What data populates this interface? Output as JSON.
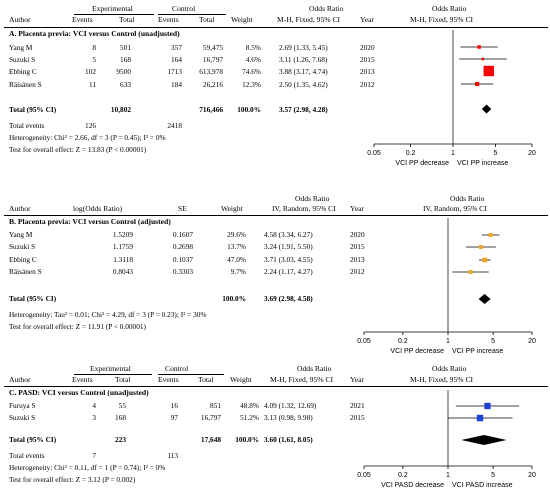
{
  "chart_data": [
    {
      "type": "forest",
      "section_title": "A. Placenta previa: VCI versus Control (unadjusted)",
      "group_headers": {
        "experimental": "Experimental",
        "control": "Control"
      },
      "columns": [
        "Author",
        "Events",
        "Total",
        "Events",
        "Total",
        "Weight",
        "M-H, Fixed, 95% CI",
        "Year"
      ],
      "effect_header": "Odds Ratio",
      "effect_subheader": "M-H, Fixed, 95% CI",
      "rows": [
        {
          "author": "Yang M",
          "exp_events": "8",
          "exp_total": "501",
          "ctl_events": "357",
          "ctl_total": "59,475",
          "weight": "8.5%",
          "ci_text": "2.69 (1.33, 5.45)",
          "year": "2020",
          "or": 2.69,
          "lo": 1.33,
          "hi": 5.45
        },
        {
          "author": "Suzuki S",
          "exp_events": "5",
          "exp_total": "168",
          "ctl_events": "164",
          "ctl_total": "16,797",
          "weight": "4.6%",
          "ci_text": "3.11 (1.26, 7.68)",
          "year": "2015",
          "or": 3.11,
          "lo": 1.26,
          "hi": 7.68
        },
        {
          "author": "Ebbing C",
          "exp_events": "102",
          "exp_total": "9500",
          "ctl_events": "1713",
          "ctl_total": "613,978",
          "weight": "74.6%",
          "ci_text": "3.88 (3.17, 4.74)",
          "year": "2013",
          "or": 3.88,
          "lo": 3.17,
          "hi": 4.74
        },
        {
          "author": "Räisänen S",
          "exp_events": "11",
          "exp_total": "633",
          "ctl_events": "184",
          "ctl_total": "26,216",
          "weight": "12.3%",
          "ci_text": "2.50 (1.35, 4.62)",
          "year": "2012",
          "or": 2.5,
          "lo": 1.35,
          "hi": 4.62
        }
      ],
      "total": {
        "label": "Total (95% CI)",
        "exp_total": "10,802",
        "ctl_total": "716,466",
        "weight": "100.0%",
        "ci_text": "3.57 (2.98, 4.28)",
        "or": 3.57,
        "lo": 2.98,
        "hi": 4.28
      },
      "total_events": {
        "label": "Total events",
        "exp": "126",
        "ctl": "2418"
      },
      "heterogeneity": "Heterogeneity: Chi² = 2.66, df = 3 (P = 0.45); I² = 0%",
      "overall_effect": "Test for overall effect: Z = 13.83 (P < 0.00001)",
      "axis": {
        "scale": "log",
        "ticks": [
          0.05,
          0.2,
          1,
          5,
          20
        ],
        "tick_labels": [
          "0.05",
          "0.2",
          "1",
          "5",
          "20"
        ],
        "left_label": "VCI PP decrease",
        "right_label": "VCI PP increase"
      },
      "marker_color": "#ff0000"
    },
    {
      "type": "forest",
      "section_title": "B. Placenta previa: VCI versus Control (adjusted)",
      "columns": [
        "Author",
        "log(Odds Ratio)",
        "SE",
        "Weight",
        "IV, Random, 95% CI",
        "Year"
      ],
      "effect_header": "Odds Ratio",
      "effect_subheader": "IV, Random, 95% CI",
      "rows": [
        {
          "author": "Yang M",
          "log_or": "1.5209",
          "se": "0.1607",
          "weight": "29.6%",
          "ci_text": "4.58 (3.34, 6.27)",
          "year": "2020",
          "or": 4.58,
          "lo": 3.34,
          "hi": 6.27
        },
        {
          "author": "Suzuki S",
          "log_or": "1.1759",
          "se": "0.2698",
          "weight": "13.7%",
          "ci_text": "3.24 (1.91, 5.50)",
          "year": "2015",
          "or": 3.24,
          "lo": 1.91,
          "hi": 5.5
        },
        {
          "author": "Ebbing C",
          "log_or": "1.3118",
          "se": "0.1037",
          "weight": "47.0%",
          "ci_text": "3.71 (3.03, 4.55)",
          "year": "2013",
          "or": 3.71,
          "lo": 3.03,
          "hi": 4.55
        },
        {
          "author": "Räisänen S",
          "log_or": "0.8043",
          "se": "0.3303",
          "weight": "9.7%",
          "ci_text": "2.24 (1.17, 4.27)",
          "year": "2012",
          "or": 2.24,
          "lo": 1.17,
          "hi": 4.27
        }
      ],
      "total": {
        "label": "Total (95% CI)",
        "weight": "100.0%",
        "ci_text": "3.69 (2.98, 4.58)",
        "or": 3.69,
        "lo": 2.98,
        "hi": 4.58
      },
      "heterogeneity": "Heterogeneity: Tau² = 0.01; Chi² = 4.29, df = 3 (P = 0.23); I² = 30%",
      "overall_effect": "Test for overall effect: Z = 11.91 (P < 0.00001)",
      "axis": {
        "scale": "log",
        "ticks": [
          0.05,
          0.2,
          1,
          5,
          20
        ],
        "tick_labels": [
          "0.05",
          "0.2",
          "1",
          "5",
          "20"
        ],
        "left_label": "VCI PP decrease",
        "right_label": "VCI PP increase"
      },
      "marker_color": "#f5a623"
    },
    {
      "type": "forest",
      "section_title": "C. PASD: VCI versus Control (unadjusted)",
      "group_headers": {
        "experimental": "Experimental",
        "control": "Control"
      },
      "columns": [
        "Author",
        "Events",
        "Total",
        "Events",
        "Total",
        "Weight",
        "M-H, Fixed, 95% CI",
        "Year"
      ],
      "effect_header": "Odds Ratio",
      "effect_subheader": "M-H, Fixed, 95% CI",
      "rows": [
        {
          "author": "Furuya S",
          "exp_events": "4",
          "exp_total": "55",
          "ctl_events": "16",
          "ctl_total": "851",
          "weight": "48.8%",
          "ci_text": "4.09 (1.32, 12.69)",
          "year": "2021",
          "or": 4.09,
          "lo": 1.32,
          "hi": 12.69
        },
        {
          "author": "Suzuki S",
          "exp_events": "3",
          "exp_total": "168",
          "ctl_events": "97",
          "ctl_total": "16,797",
          "weight": "51.2%",
          "ci_text": "3.13 (0.98, 9.98)",
          "year": "2015",
          "or": 3.13,
          "lo": 0.98,
          "hi": 9.98
        }
      ],
      "total": {
        "label": "Total (95% CI)",
        "exp_total": "223",
        "ctl_total": "17,648",
        "weight": "100.0%",
        "ci_text": "3.60 (1.61, 8.05)",
        "or": 3.6,
        "lo": 1.61,
        "hi": 8.05
      },
      "total_events": {
        "label": "Total events",
        "exp": "7",
        "ctl": "113"
      },
      "heterogeneity": "Heterogeneity: Chi² = 0.11, df = 1 (P = 0.74); I² = 0%",
      "overall_effect": "Test for overall effect: Z = 3.12 (P = 0.002)",
      "axis": {
        "scale": "log",
        "ticks": [
          0.05,
          0.2,
          1,
          5,
          20
        ],
        "tick_labels": [
          "0.05",
          "0.2",
          "1",
          "5",
          "20"
        ],
        "left_label": "VCI PASD decrease",
        "right_label": "VCI PASD increase"
      },
      "marker_color": "#1f3fd6"
    }
  ]
}
